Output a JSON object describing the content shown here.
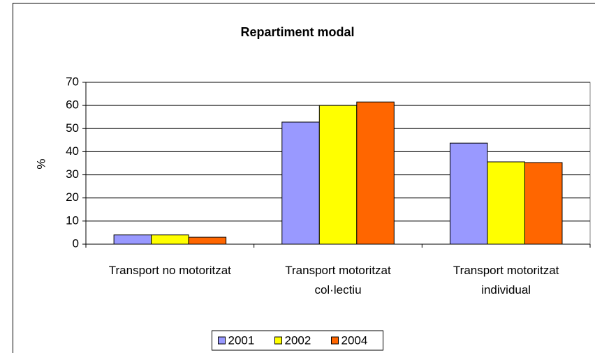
{
  "chart_data": {
    "type": "bar",
    "title": "Repartiment modal",
    "y_label": "%",
    "categories": [
      "Transport no motoritzat",
      "Transport motoritzat col·lectiu",
      "Transport motoritzat individual"
    ],
    "series": [
      {
        "name": "2001",
        "color": "#9999ff",
        "values": [
          4,
          52.8,
          43.7
        ]
      },
      {
        "name": "2002",
        "color": "#ffff00",
        "values": [
          4,
          60,
          35.6
        ]
      },
      {
        "name": "2004",
        "color": "#ff6600",
        "values": [
          3,
          61.5,
          35.3
        ]
      }
    ],
    "ylim": [
      0,
      70
    ],
    "yticks": [
      0,
      10,
      20,
      30,
      40,
      50,
      60,
      70
    ],
    "grid": true,
    "legend": "bottom"
  }
}
